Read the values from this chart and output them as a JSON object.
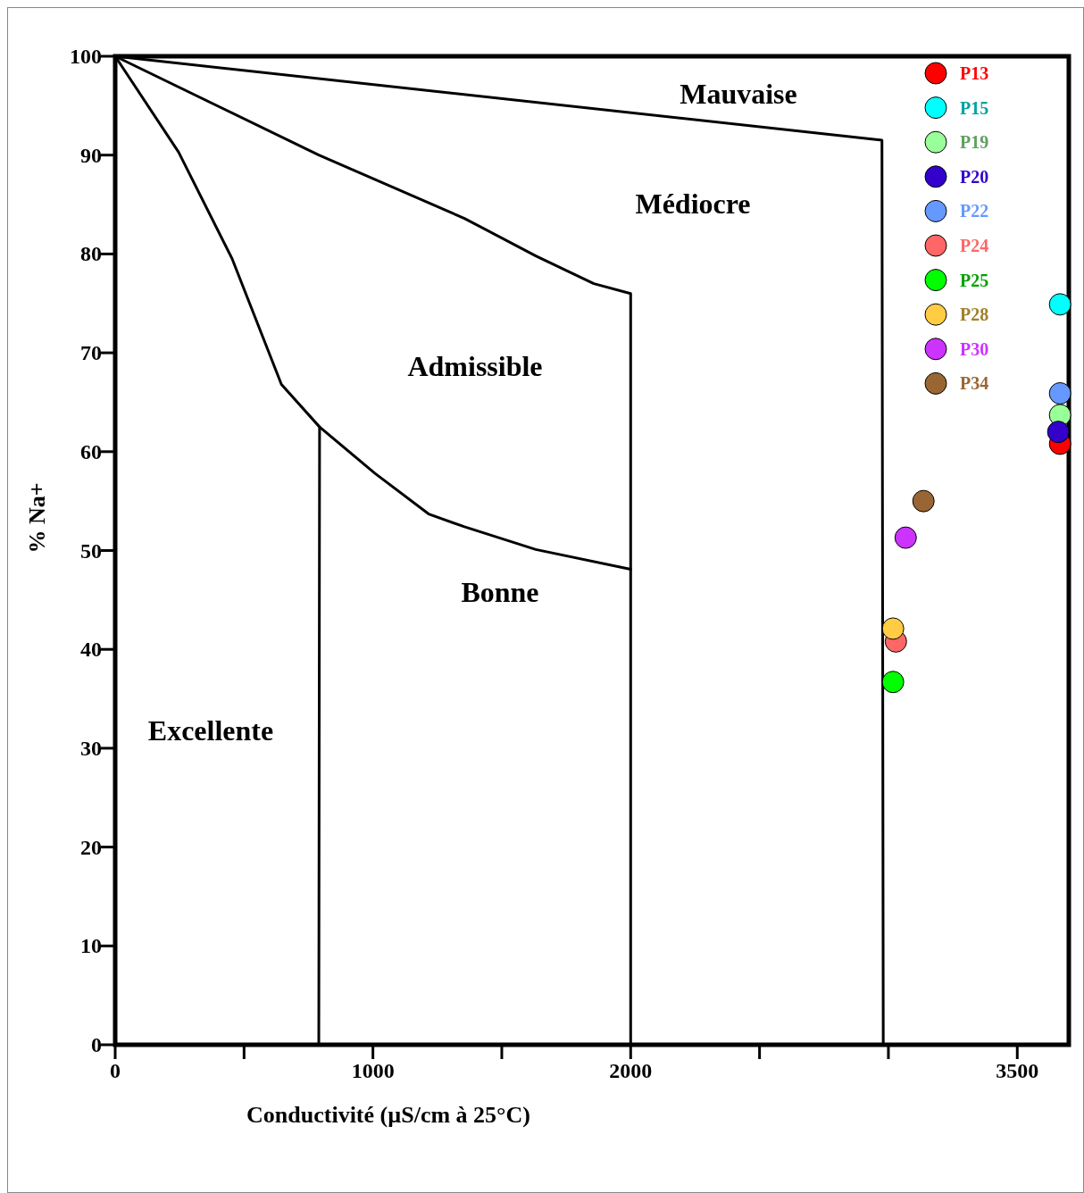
{
  "chart_data": {
    "type": "scatter",
    "xlabel": "Conductivité (µS/cm à 25°C)",
    "ylabel": "% Na+",
    "xlim": [
      0,
      3700
    ],
    "ylim": [
      0,
      100
    ],
    "xticks": [
      0,
      {
        "value": 500,
        "label": null
      },
      1000,
      {
        "value": 1500,
        "label": null
      },
      2000,
      {
        "value": 2500,
        "label": null
      },
      {
        "value": 3000,
        "label": null
      },
      3500
    ],
    "yticks": [
      0,
      10,
      20,
      30,
      40,
      50,
      60,
      70,
      80,
      90,
      100
    ],
    "grid": false,
    "legend": "top right",
    "marker": "circle",
    "annotations": [
      "Mauvaise",
      "Médiocre",
      "Admissible",
      "Bonne",
      "Excellente"
    ],
    "series": [
      {
        "type": "line",
        "color": "#000000",
        "marker": "none",
        "x": [
          0,
          2975,
          2980
        ],
        "values": [
          100,
          91.5,
          0
        ]
      },
      {
        "type": "line",
        "color": "#000000",
        "marker": "none",
        "x": [
          0,
          790,
          1355,
          1632,
          1857,
          2000,
          2000
        ],
        "values": [
          100,
          90,
          83.6,
          79.8,
          77,
          76,
          0
        ]
      },
      {
        "type": "line",
        "color": "#000000",
        "marker": "none",
        "x": [
          0,
          246,
          454,
          645,
          793,
          1008,
          1216,
          1355,
          1632,
          2000
        ],
        "values": [
          100,
          90.3,
          79.5,
          66.8,
          62.5,
          57.8,
          53.7,
          52.4,
          50.1,
          48.1
        ]
      },
      {
        "type": "line",
        "color": "#000000",
        "marker": "none",
        "x": [
          793,
          790
        ],
        "values": [
          62.5,
          0
        ]
      },
      {
        "name": "P13",
        "color": "#ff0000",
        "x": [
          3666
        ],
        "values": [
          60.8
        ]
      },
      {
        "name": "P15",
        "color": "#00ffff",
        "x": [
          3666
        ],
        "values": [
          74.9
        ]
      },
      {
        "name": "P19",
        "color": "#99ff99",
        "x": [
          3666
        ],
        "values": [
          63.7
        ]
      },
      {
        "name": "P20",
        "color": "#3300cc",
        "x": [
          3659
        ],
        "values": [
          62
        ]
      },
      {
        "name": "P22",
        "color": "#6699ff",
        "x": [
          3666
        ],
        "values": [
          65.9
        ]
      },
      {
        "name": "P24",
        "color": "#ff6666",
        "x": [
          3029
        ],
        "values": [
          40.8
        ]
      },
      {
        "name": "P25",
        "color": "#00ff00",
        "x": [
          3018
        ],
        "values": [
          36.7
        ]
      },
      {
        "name": "P28",
        "color": "#ffcc44",
        "x": [
          3018
        ],
        "values": [
          42.1
        ]
      },
      {
        "name": "P30",
        "color": "#cc33ff",
        "x": [
          3067
        ],
        "values": [
          51.3
        ]
      },
      {
        "name": "P34",
        "color": "#996633",
        "x": [
          3136
        ],
        "values": [
          55
        ]
      }
    ]
  }
}
